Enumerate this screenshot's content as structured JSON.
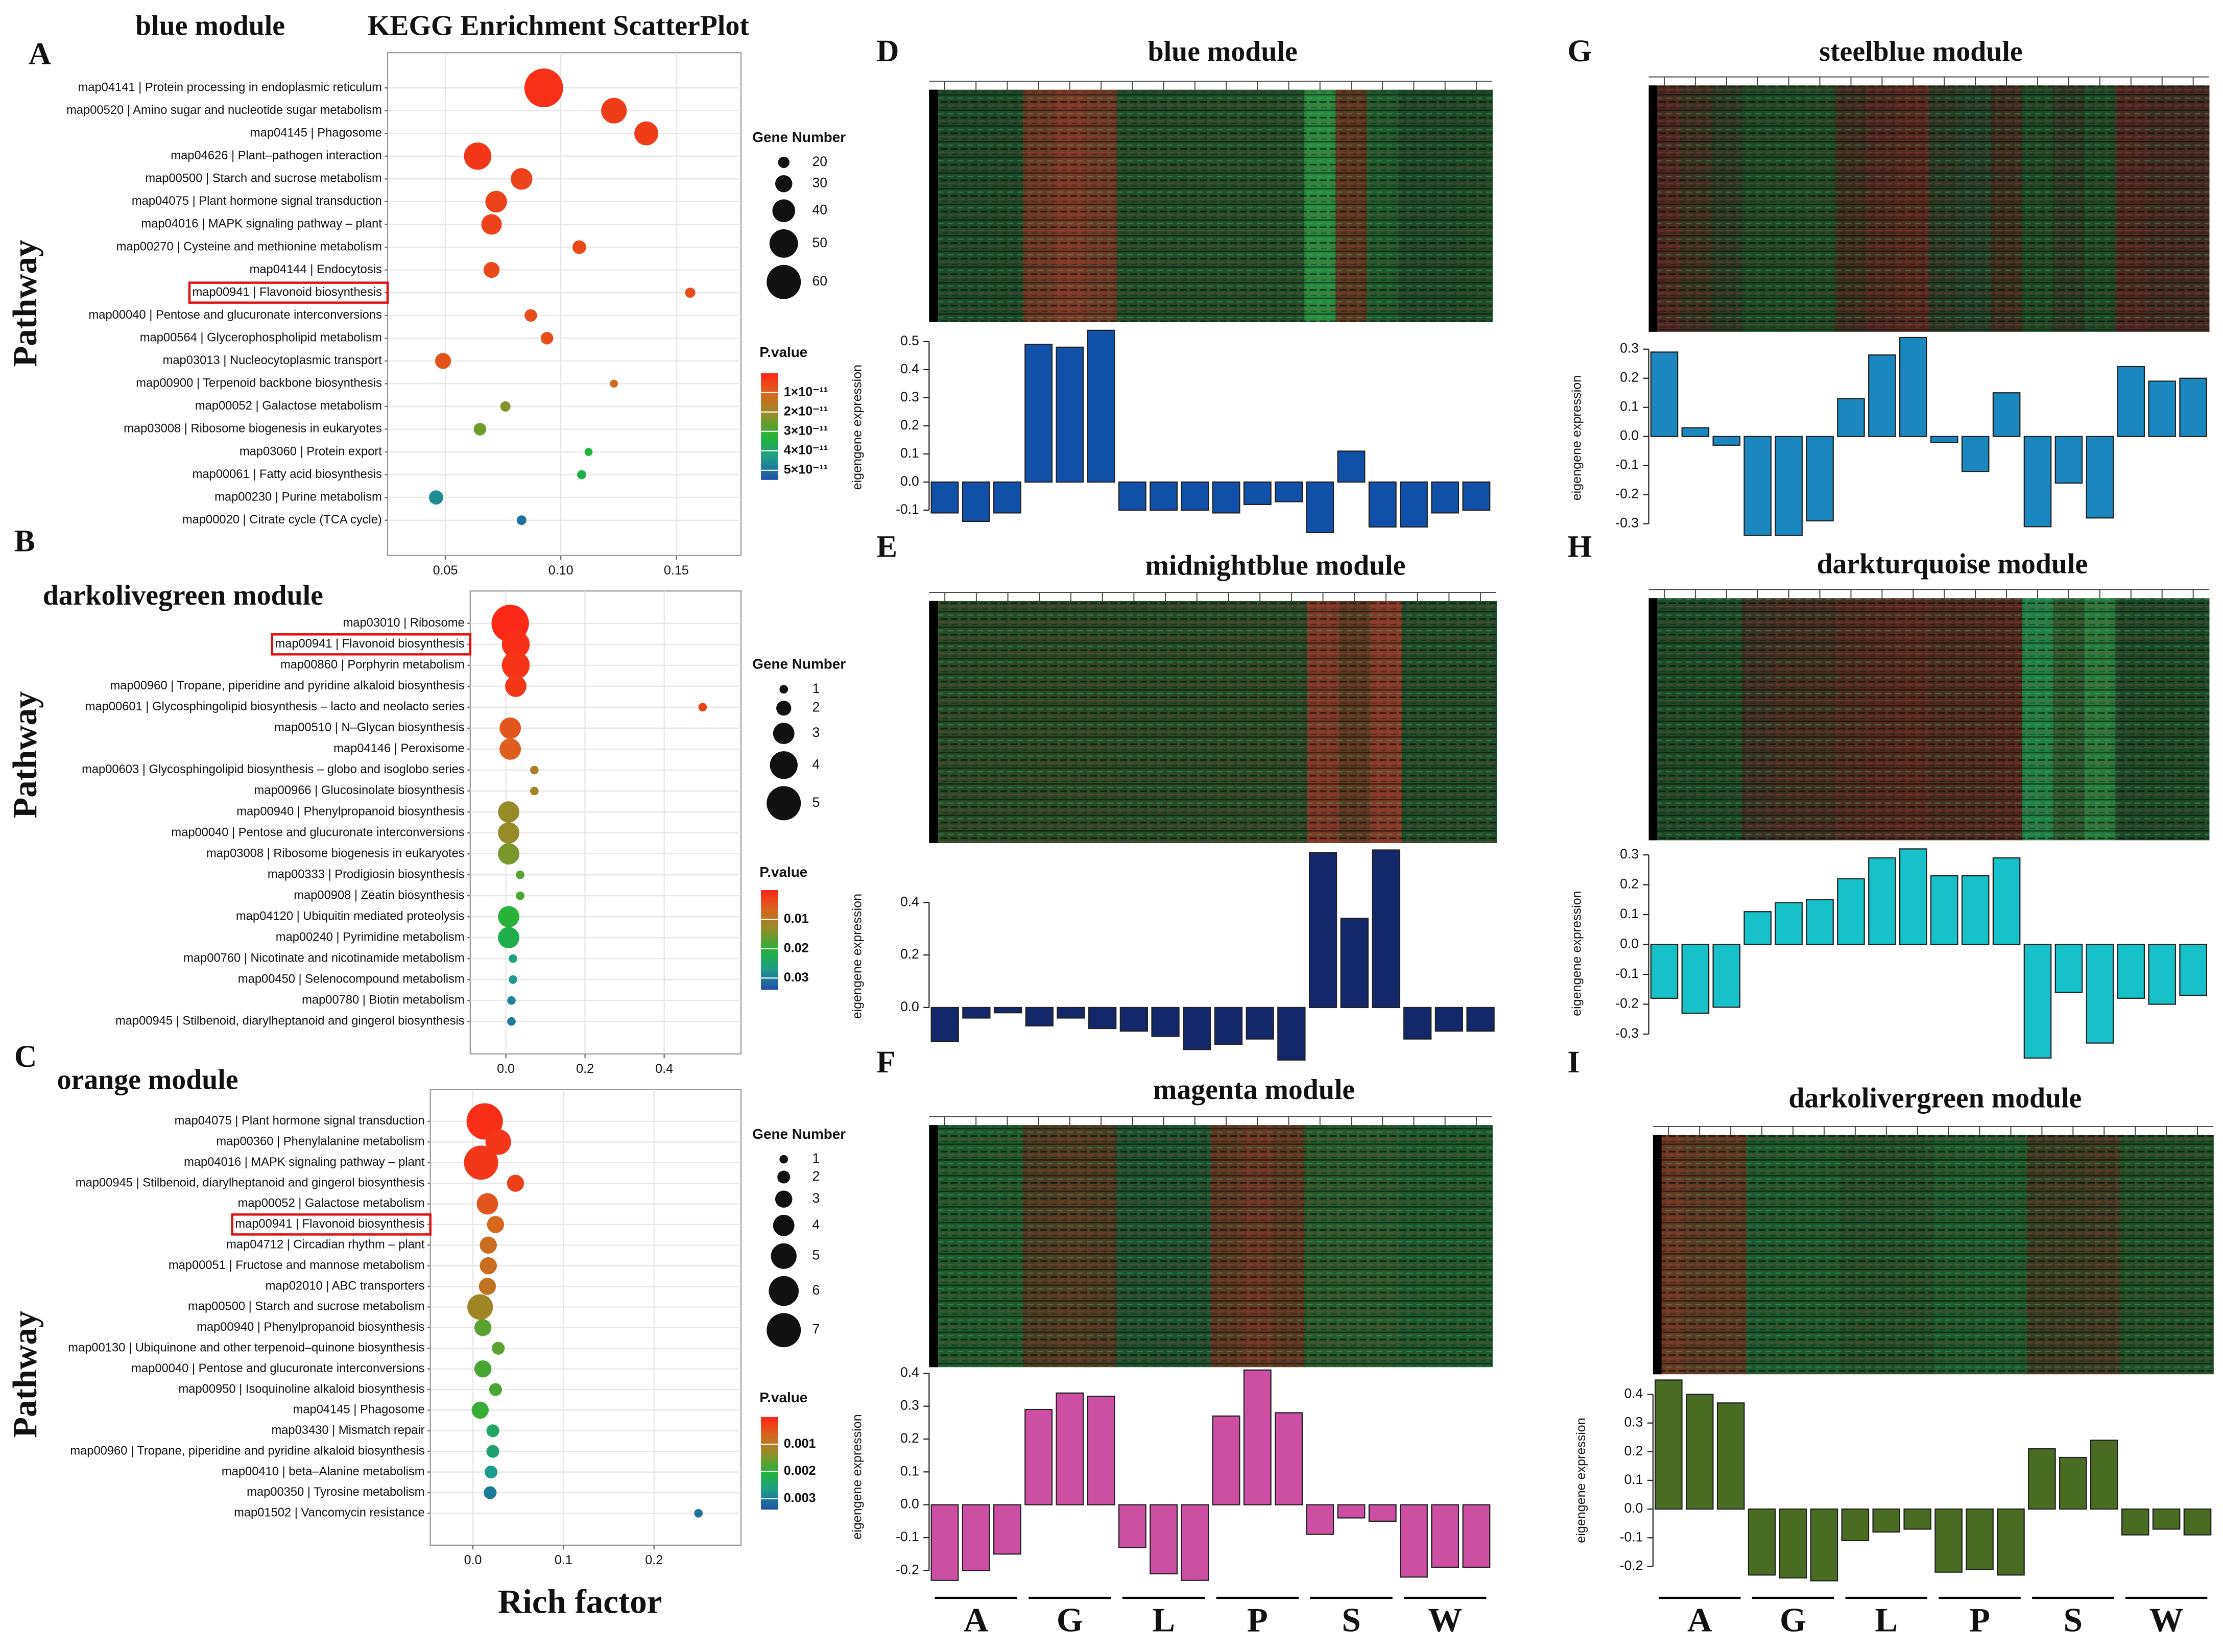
{
  "chart_data": [
    {
      "type": "scatter",
      "panel": "A",
      "title": "blue module",
      "subtitle": "KEGG Enrichment ScatterPlot",
      "ylabel": "Pathway",
      "categories": [
        "map04141 | Protein processing in endoplasmic reticulum",
        "map00520 | Amino sugar and nucleotide sugar metabolism",
        "map04145 | Phagosome",
        "map04626 | Plant–pathogen interaction",
        "map00500 | Starch and sucrose metabolism",
        "map04075 | Plant hormone signal transduction",
        "map04016 | MAPK signaling pathway – plant",
        "map00270 | Cysteine and methionine metabolism",
        "map04144 | Endocytosis",
        "map00941 | Flavonoid biosynthesis",
        "map00040 | Pentose and glucuronate interconversions",
        "map00564 | Glycerophospholipid metabolism",
        "map03013 | Nucleocytoplasmic transport",
        "map00900 | Terpenoid backbone biosynthesis",
        "map00052 | Galactose metabolism",
        "map03008 | Ribosome biogenesis in eukaryotes",
        "map03060 | Protein export",
        "map00061 | Fatty acid biosynthesis",
        "map00230 | Purine metabolism",
        "map00020 | Citrate cycle (TCA cycle)"
      ],
      "x": [
        0.0926,
        0.123,
        0.137,
        0.064,
        0.083,
        0.072,
        0.07,
        0.108,
        0.07,
        0.156,
        0.087,
        0.094,
        0.049,
        0.123,
        0.076,
        0.065,
        0.112,
        0.109,
        0.046,
        0.083
      ],
      "sizes": [
        68,
        45,
        42,
        48,
        38,
        38,
        36,
        24,
        28,
        18,
        22,
        22,
        28,
        14,
        18,
        22,
        14,
        16,
        25,
        17
      ],
      "pvalues": [
        2e-12,
        4e-12,
        4e-12,
        3e-12,
        5e-12,
        5e-12,
        5e-12,
        6e-12,
        6e-12,
        7e-12,
        7e-12,
        7e-12,
        8e-12,
        1.2e-11,
        2.3e-11,
        2.5e-11,
        3.3e-11,
        3.5e-11,
        4.6e-11,
        5e-11
      ],
      "highlight": 9,
      "xlim": [
        0.025,
        0.178
      ],
      "xticks": [
        0.05,
        {
          "value": 0.1,
          "label": "0.10"
        },
        0.15
      ],
      "size_legend_title": "Gene Number",
      "size_legend": [
        20,
        30,
        40,
        50,
        60
      ],
      "color_legend_title": "P.value",
      "plim": [
        0,
        5.5e-11
      ],
      "pticks": [
        {
          "value": 1e-11,
          "label": "1×10⁻¹¹"
        },
        {
          "value": 2e-11,
          "label": "2×10⁻¹¹"
        },
        {
          "value": 3e-11,
          "label": "3×10⁻¹¹"
        },
        {
          "value": 4e-11,
          "label": "4×10⁻¹¹"
        },
        {
          "value": 5e-11,
          "label": "5×10⁻¹¹"
        }
      ],
      "colormap": [
        "#ff2418",
        "#d8661e",
        "#8f8f2a",
        "#22b43a",
        "#1e9a8c",
        "#1f4fa8"
      ],
      "grid": true
    },
    {
      "type": "scatter",
      "panel": "B",
      "title": "darkolivegreen module",
      "ylabel": "Pathway",
      "categories": [
        "map03010 | Ribosome",
        "map00941 | Flavonoid biosynthesis",
        "map00860 | Porphyrin metabolism",
        "map00960 | Tropane, piperidine and pyridine alkaloid biosynthesis",
        "map00601 | Glycosphingolipid biosynthesis – lacto and neolacto series",
        "map00510 | N–Glycan biosynthesis",
        "map04146 | Peroxisome",
        "map00603 | Glycosphingolipid biosynthesis – globo and isoglobo series",
        "map00966 | Glucosinolate biosynthesis",
        "map00940 | Phenylpropanoid biosynthesis",
        "map00040 | Pentose and glucuronate interconversions",
        "map03008 | Ribosome biogenesis in eukaryotes",
        "map00333 | Prodigiosin biosynthesis",
        "map00908 | Zeatin biosynthesis",
        "map04120 | Ubiquitin mediated proteolysis",
        "map00240 | Pyrimidine metabolism",
        "map00760 | Nicotinate and nicotinamide metabolism",
        "map00450 | Selenocompound metabolism",
        "map00780 | Biotin metabolism",
        "map00945 | Stilbenoid, diarylheptanoid and gingerol biosynthesis"
      ],
      "x": [
        0.011,
        0.025,
        0.025,
        0.025,
        0.497,
        0.011,
        0.011,
        0.072,
        0.072,
        0.007,
        0.007,
        0.007,
        0.036,
        0.036,
        0.007,
        0.007,
        0.018,
        0.018,
        0.014,
        0.014
      ],
      "sizes": [
        5.5,
        4,
        4,
        3,
        1,
        3,
        3,
        1,
        1,
        3,
        3,
        3,
        1,
        1,
        3,
        3,
        1,
        1,
        1,
        1
      ],
      "pvalues": [
        0.0005,
        0.001,
        0.0015,
        0.002,
        0.003,
        0.005,
        0.006,
        0.011,
        0.012,
        0.013,
        0.013,
        0.015,
        0.017,
        0.018,
        0.02,
        0.022,
        0.026,
        0.027,
        0.029,
        0.03
      ],
      "highlight": 1,
      "xlim": [
        -0.09,
        0.594
      ],
      "xticks": [
        {
          "value": 0,
          "label": "0.0"
        },
        0.2,
        0.4
      ],
      "size_legend_title": "Gene Number",
      "size_legend": [
        1,
        2,
        3,
        4,
        5
      ],
      "color_legend_title": "P.value",
      "plim": [
        0,
        0.034
      ],
      "pticks": [
        0.01,
        0.02,
        0.03
      ],
      "colormap": [
        "#ff2418",
        "#d8661e",
        "#8f8f2a",
        "#22b43a",
        "#1e9a8c",
        "#1f4fa8"
      ],
      "grid": true
    },
    {
      "type": "scatter",
      "panel": "C",
      "title": "orange module",
      "ylabel": "Pathway",
      "xlabel": "Rich factor",
      "categories": [
        "map04075 | Plant hormone signal transduction",
        "map00360 | Phenylalanine metabolism",
        "map04016 | MAPK signaling pathway – plant",
        "map00945 | Stilbenoid, diarylheptanoid and gingerol biosynthesis",
        "map00052 | Galactose metabolism",
        "map00941 | Flavonoid biosynthesis",
        "map04712 | Circadian rhythm – plant",
        "map00051 | Fructose and mannose metabolism",
        "map02010 | ABC transporters",
        "map00500 | Starch and sucrose metabolism",
        "map00940 | Phenylpropanoid biosynthesis",
        "map00130 | Ubiquinone and other terpenoid–quinone biosynthesis",
        "map00040 | Pentose and glucuronate interconversions",
        "map00950 | Isoquinoline alkaloid biosynthesis",
        "map04145 | Phagosome",
        "map03430 | Mismatch repair",
        "map00960 | Tropane, piperidine and pyridine alkaloid biosynthesis",
        "map00410 | beta–Alanine metabolism",
        "map00350 | Tyrosine metabolism",
        "map01502 | Vancomycin resistance"
      ],
      "x": [
        0.013,
        0.028,
        0.009,
        0.047,
        0.016,
        0.025,
        0.017,
        0.017,
        0.016,
        0.008,
        0.011,
        0.028,
        0.011,
        0.025,
        0.008,
        0.022,
        0.022,
        0.02,
        0.019,
        0.249
      ],
      "sizes": [
        7.5,
        5,
        7,
        3,
        4,
        3,
        3,
        3,
        3,
        5,
        3,
        2,
        3,
        2,
        3,
        2,
        2,
        2,
        2,
        1
      ],
      "pvalues": [
        0.0001,
        0.0002,
        0.0002,
        0.0003,
        0.0005,
        0.0007,
        0.0008,
        0.0008,
        0.0009,
        0.0012,
        0.0017,
        0.0017,
        0.0018,
        0.0018,
        0.0019,
        0.0024,
        0.0025,
        0.0027,
        0.003,
        0.0031
      ],
      "highlight": 5,
      "xlim": [
        -0.047,
        0.296
      ],
      "xticks": [
        {
          "value": 0,
          "label": "0.0"
        },
        0.1,
        0.2
      ],
      "size_legend_title": "Gene Number",
      "size_legend": [
        1,
        2,
        3,
        4,
        5,
        6,
        7
      ],
      "color_legend_title": "P.value",
      "plim": [
        0,
        0.0034
      ],
      "pticks": [
        0.001,
        0.002,
        0.003
      ],
      "colormap": [
        "#ff2418",
        "#d8661e",
        "#8f8f2a",
        "#22b43a",
        "#1e9a8c",
        "#1f4fa8"
      ],
      "grid": true
    },
    {
      "type": "bar",
      "panel": "D",
      "title": "blue module",
      "ylabel": "eigengene expression",
      "color": "#1150a8",
      "values": [
        -0.11,
        -0.14,
        -0.11,
        0.49,
        0.48,
        0.54,
        -0.1,
        -0.1,
        -0.1,
        -0.11,
        -0.08,
        -0.07,
        -0.18,
        0.11,
        -0.16,
        -0.16,
        -0.11,
        -0.1
      ],
      "ylim": [
        -0.17,
        0.56
      ],
      "yticks": [
        -0.1,
        {
          "value": 0,
          "label": "0.0"
        },
        0.1,
        0.2,
        0.3,
        0.4,
        0.5
      ],
      "heatmap_colors": [
        "#1d4a2a",
        "#1d4a2a",
        "#1e4a2a",
        "#6a3a24",
        "#7a3a26",
        "#6e3c26",
        "#234d2b",
        "#234d2b",
        "#234d2b",
        "#244e2c",
        "#244e2c",
        "#244e2c",
        "#2a8a3e",
        "#5a3a22",
        "#1f5a30",
        "#1d4a2a",
        "#1d4a2a",
        "#1e4b2a"
      ]
    },
    {
      "type": "bar",
      "panel": "E",
      "title": "midnightblue module",
      "ylabel": "eigengene expression",
      "color": "#14276a",
      "values": [
        -0.13,
        -0.04,
        -0.02,
        -0.07,
        -0.04,
        -0.08,
        -0.09,
        -0.11,
        -0.16,
        -0.14,
        -0.12,
        -0.2,
        0.59,
        0.34,
        0.6,
        -0.12,
        -0.09,
        -0.09
      ],
      "ylim": [
        -0.22,
        0.61
      ],
      "yticks": [
        {
          "value": 0,
          "label": "0.0"
        },
        0.2,
        0.4
      ],
      "heatmap_colors": [
        "#2a4a2a",
        "#2a4a2a",
        "#2a4a2a",
        "#2c4a2a",
        "#2c4a2a",
        "#2c4a2a",
        "#2a4a2a",
        "#2a4a2a",
        "#2a4a2a",
        "#2c4a2a",
        "#2c4a2a",
        "#2c4a2a",
        "#7a3a26",
        "#5a3a24",
        "#803c28",
        "#234d2b",
        "#234d2b",
        "#234d2b"
      ]
    },
    {
      "type": "bar",
      "panel": "F",
      "title": "magenta module",
      "ylabel": "eigengene expression",
      "color": "#cc4fa3",
      "values": [
        -0.23,
        -0.2,
        -0.15,
        0.29,
        0.34,
        0.33,
        -0.13,
        -0.21,
        -0.23,
        0.27,
        0.41,
        0.28,
        -0.09,
        -0.04,
        -0.05,
        -0.22,
        -0.19,
        -0.19
      ],
      "ylim": [
        -0.24,
        0.41
      ],
      "yticks": [
        -0.2,
        -0.1,
        {
          "value": 0,
          "label": "0.0"
        },
        0.1,
        0.2,
        0.3,
        0.4
      ],
      "groups": [
        "A",
        "G",
        "L",
        "P",
        "S",
        "W"
      ],
      "heatmap_colors": [
        "#1f5a30",
        "#1f5a30",
        "#225a30",
        "#4a3e26",
        "#503e26",
        "#4c3e26",
        "#1f5230",
        "#1f5230",
        "#1f5230",
        "#5a3a24",
        "#6a3826",
        "#5a3a24",
        "#2a5a30",
        "#2a5a30",
        "#2a5a30",
        "#1f5a30",
        "#1f5a30",
        "#1f5a30"
      ]
    },
    {
      "type": "bar",
      "panel": "G",
      "title": "steelblue module",
      "ylabel": "eigengene expression",
      "color": "#1a87bf",
      "values": [
        0.29,
        0.03,
        -0.03,
        -0.34,
        -0.34,
        -0.29,
        0.13,
        0.28,
        0.34,
        -0.02,
        -0.12,
        0.15,
        -0.31,
        -0.16,
        -0.28,
        0.24,
        0.19,
        0.2
      ],
      "ylim": [
        -0.35,
        0.34
      ],
      "yticks": [
        -0.3,
        -0.2,
        -0.1,
        {
          "value": 0,
          "label": "0.0"
        },
        0.1,
        0.2,
        0.3
      ],
      "heatmap_colors": [
        "#4a2a22",
        "#3a3222",
        "#2a3a24",
        "#1f4a28",
        "#1f4a28",
        "#224a28",
        "#3a3022",
        "#4a2a22",
        "#542a22",
        "#2a3a24",
        "#24402a",
        "#3a3022",
        "#1f4a28",
        "#2a3a24",
        "#1f4a28",
        "#4a2a22",
        "#402c22",
        "#402c22"
      ]
    },
    {
      "type": "bar",
      "panel": "H",
      "title": "darkturquoise module",
      "ylabel": "eigengene expression",
      "color": "#17c1c9",
      "values": [
        -0.18,
        -0.23,
        -0.21,
        0.11,
        0.14,
        0.15,
        0.22,
        0.29,
        0.32,
        0.23,
        0.23,
        0.29,
        -0.38,
        -0.16,
        -0.33,
        -0.18,
        -0.2,
        -0.17
      ],
      "ylim": [
        -0.39,
        0.33
      ],
      "yticks": [
        -0.3,
        -0.2,
        -0.1,
        {
          "value": 0,
          "label": "0.0"
        },
        0.1,
        0.2,
        0.3
      ],
      "heatmap_colors": [
        "#1f4a2a",
        "#1f4a2a",
        "#1f4a2a",
        "#3a3224",
        "#403024",
        "#403024",
        "#4a2c22",
        "#502a22",
        "#542a22",
        "#4a2c22",
        "#4a2c22",
        "#502a22",
        "#24804a",
        "#2a5a30",
        "#2a7a40",
        "#1f4a2a",
        "#1f4a2a",
        "#1f4a2a"
      ]
    },
    {
      "type": "bar",
      "panel": "I",
      "title": "darkolivergreen module",
      "ylabel": "eigengene expression",
      "color": "#4a6b22",
      "values": [
        0.45,
        0.4,
        0.37,
        -0.23,
        -0.24,
        -0.25,
        -0.11,
        -0.08,
        -0.07,
        -0.22,
        -0.21,
        -0.23,
        0.21,
        0.18,
        0.24,
        -0.09,
        -0.07,
        -0.09
      ],
      "ylim": [
        -0.26,
        0.46
      ],
      "yticks": [
        -0.2,
        -0.1,
        {
          "value": 0,
          "label": "0.0"
        },
        0.1,
        0.2,
        0.3,
        0.4
      ],
      "groups": [
        "A",
        "G",
        "L",
        "P",
        "S",
        "W"
      ],
      "heatmap_colors": [
        "#6a3a26",
        "#5a3c26",
        "#5a3c26",
        "#1f5a30",
        "#1f5a30",
        "#1f5a30",
        "#24502c",
        "#24502c",
        "#24502c",
        "#1f5a30",
        "#1f5a30",
        "#1f5a30",
        "#3a3e26",
        "#3a3e26",
        "#403c26",
        "#24502c",
        "#24502c",
        "#24502c"
      ]
    }
  ]
}
